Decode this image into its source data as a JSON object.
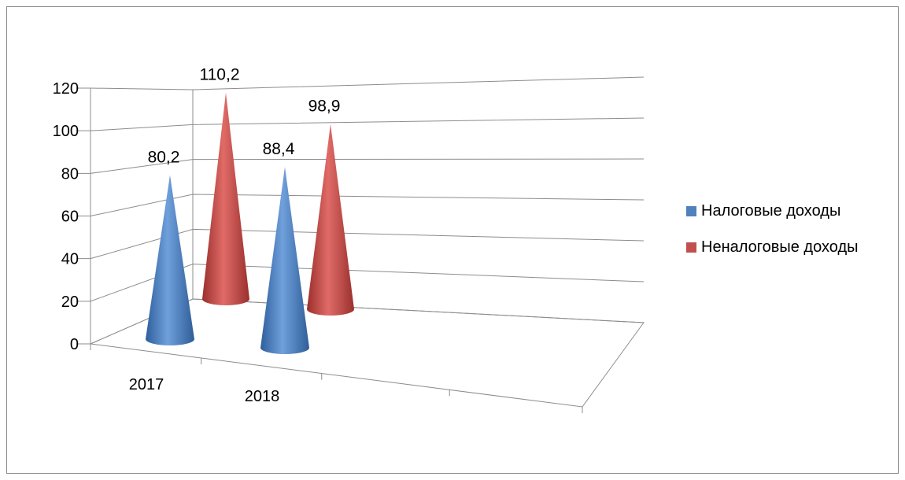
{
  "chart_data": {
    "type": "bar",
    "subtype": "3d-cone",
    "title": "",
    "xlabel": "",
    "ylabel": "",
    "categories": [
      "2017",
      "2018"
    ],
    "ylim": [
      0,
      120
    ],
    "yticks": [
      "0",
      "20",
      "40",
      "60",
      "80",
      "100",
      "120"
    ],
    "grid": true,
    "legend_position": "right",
    "series": [
      {
        "name": "Налоговые доходы",
        "color": "#4F81BD",
        "values": [
          80.2,
          88.4
        ],
        "labels": [
          "80,2",
          "88,4"
        ]
      },
      {
        "name": "Неналоговые доходы",
        "color": "#C0504D",
        "values": [
          110.2,
          98.9
        ],
        "labels": [
          "110,2",
          "98,9"
        ]
      }
    ]
  }
}
